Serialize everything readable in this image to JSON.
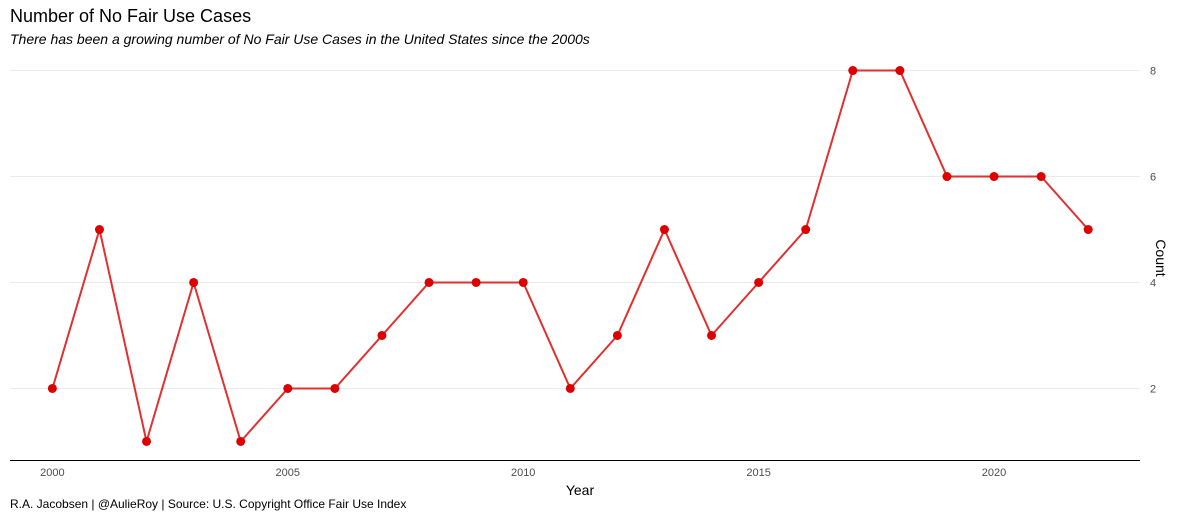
{
  "chart_data": {
    "type": "line",
    "title": "Number of No Fair Use Cases",
    "subtitle": "There has been a growing number of No Fair Use Cases in the United States since the 2000s",
    "caption": "R.A. Jacobsen | @AulieRoy | Source: U.S. Copyright Office Fair Use Index",
    "xlabel": "Year",
    "ylabel": "Count",
    "x": [
      2000,
      2001,
      2002,
      2003,
      2004,
      2005,
      2006,
      2007,
      2008,
      2009,
      2010,
      2011,
      2012,
      2013,
      2014,
      2015,
      2016,
      2017,
      2018,
      2019,
      2020,
      2021,
      2022
    ],
    "series": [
      {
        "values": [
          2,
          5,
          1,
          4,
          1,
          2,
          2,
          3,
          4,
          4,
          4,
          2,
          3,
          5,
          3,
          4,
          5,
          8,
          8,
          6,
          6,
          6,
          5
        ]
      }
    ],
    "x_ticks": [
      "2000",
      "2005",
      "2010",
      "2015",
      "2020"
    ],
    "y_ticks": [
      "2",
      "4",
      "6",
      "8"
    ],
    "xlim": [
      1999.1,
      2023.1
    ],
    "ylim": [
      0.65,
      8.35
    ],
    "y_axis_position": "right",
    "grid": "horizontal-major",
    "line_color": "#e03030",
    "point_color": "#dd0000",
    "axis_color": "#000000",
    "grid_color": "#ebebeb"
  }
}
